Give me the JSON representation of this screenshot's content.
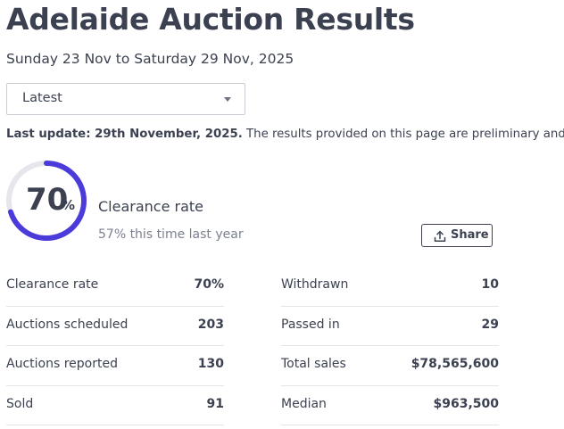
{
  "header": {
    "title": "Adelaide Auction Results",
    "date_range": "Sunday 23 Nov to Saturday 29 Nov, 2025"
  },
  "filter": {
    "selected": "Latest"
  },
  "update": {
    "label": "Last update: 29th November, 2025.",
    "note": "The results provided on this page are preliminary and current"
  },
  "summary": {
    "clearance_value": "70",
    "clearance_unit": "%",
    "clearance_fraction": 0.7,
    "clearance_label": "Clearance rate",
    "last_year_text": "57% this time last year",
    "share_label": "Share"
  },
  "colors": {
    "accent": "#4c3bdb",
    "track": "#e6e7ec",
    "text": "#3b4150"
  },
  "stats_left": [
    {
      "label": "Clearance rate",
      "value": "70%"
    },
    {
      "label": "Auctions scheduled",
      "value": "203"
    },
    {
      "label": "Auctions reported",
      "value": "130"
    },
    {
      "label": "Sold",
      "value": "91"
    }
  ],
  "stats_right": [
    {
      "label": "Withdrawn",
      "value": "10"
    },
    {
      "label": "Passed in",
      "value": "29"
    },
    {
      "label": "Total sales",
      "value": "$78,565,600"
    },
    {
      "label": "Median",
      "value": "$963,500"
    }
  ]
}
